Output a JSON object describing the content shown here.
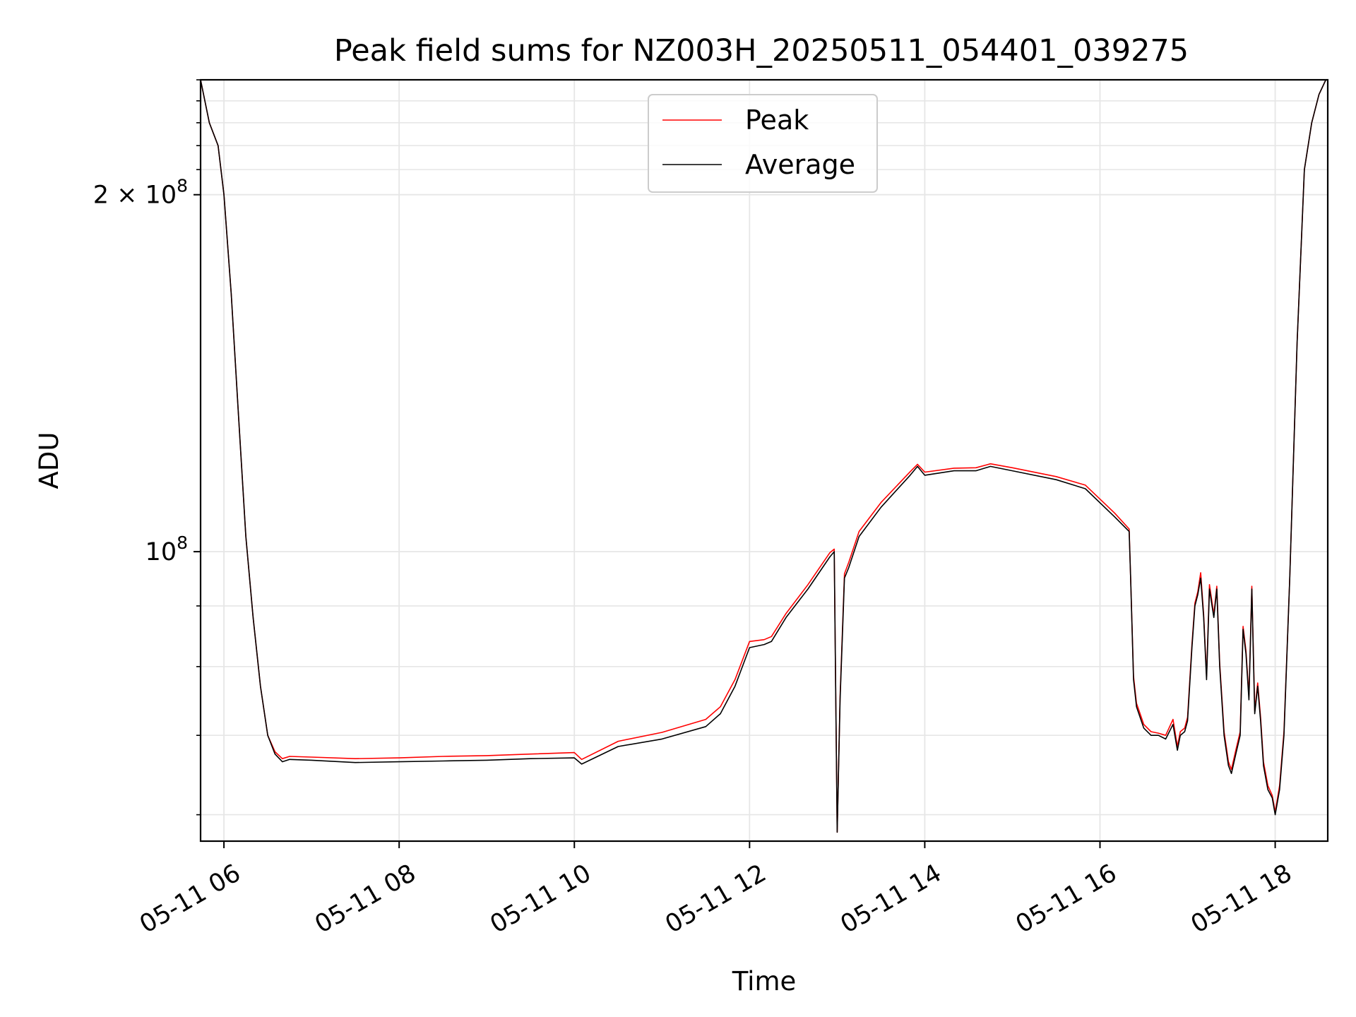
{
  "chart_data": {
    "type": "line",
    "title": "Peak field sums for NZ003H_20250511_054401_039275",
    "xlabel": "Time",
    "ylabel": "ADU",
    "y_scale": "log",
    "xlim": [
      "2025-05-11 05:44",
      "2025-05-11 18:36"
    ],
    "ylim": [
      57000000,
      250000000
    ],
    "x_ticks": [
      "05-11 06",
      "05-11 08",
      "05-11 10",
      "05-11 12",
      "05-11 14",
      "05-11 16",
      "05-11 18"
    ],
    "y_ticks": [
      {
        "value": 100000000,
        "base": "10",
        "exp": "8",
        "mult": ""
      },
      {
        "value": 200000000,
        "base": "10",
        "exp": "8",
        "mult": "2 × "
      }
    ],
    "grid": true,
    "legend_position": "top-center",
    "series": [
      {
        "name": "Average",
        "color": "#000000",
        "x": [
          "2025-05-11 05:44",
          "2025-05-11 05:50",
          "2025-05-11 05:56",
          "2025-05-11 06:00",
          "2025-05-11 06:05",
          "2025-05-11 06:10",
          "2025-05-11 06:15",
          "2025-05-11 06:20",
          "2025-05-11 06:25",
          "2025-05-11 06:30",
          "2025-05-11 06:35",
          "2025-05-11 06:40",
          "2025-05-11 06:45",
          "2025-05-11 07:00",
          "2025-05-11 07:30",
          "2025-05-11 08:00",
          "2025-05-11 08:30",
          "2025-05-11 09:00",
          "2025-05-11 09:30",
          "2025-05-11 10:00",
          "2025-05-11 10:05",
          "2025-05-11 10:30",
          "2025-05-11 11:00",
          "2025-05-11 11:30",
          "2025-05-11 11:40",
          "2025-05-11 11:50",
          "2025-05-11 12:00",
          "2025-05-11 12:10",
          "2025-05-11 12:15",
          "2025-05-11 12:25",
          "2025-05-11 12:40",
          "2025-05-11 12:55",
          "2025-05-11 12:58",
          "2025-05-11 13:00",
          "2025-05-11 13:02",
          "2025-05-11 13:05",
          "2025-05-11 13:08",
          "2025-05-11 13:15",
          "2025-05-11 13:30",
          "2025-05-11 13:50",
          "2025-05-11 13:55",
          "2025-05-11 14:00",
          "2025-05-11 14:20",
          "2025-05-11 14:35",
          "2025-05-11 14:45",
          "2025-05-11 15:00",
          "2025-05-11 15:30",
          "2025-05-11 15:50",
          "2025-05-11 16:10",
          "2025-05-11 16:20",
          "2025-05-11 16:21",
          "2025-05-11 16:23",
          "2025-05-11 16:25",
          "2025-05-11 16:30",
          "2025-05-11 16:35",
          "2025-05-11 16:40",
          "2025-05-11 16:45",
          "2025-05-11 16:50",
          "2025-05-11 16:53",
          "2025-05-11 16:55",
          "2025-05-11 16:58",
          "2025-05-11 17:00",
          "2025-05-11 17:03",
          "2025-05-11 17:05",
          "2025-05-11 17:07",
          "2025-05-11 17:09",
          "2025-05-11 17:11",
          "2025-05-11 17:13",
          "2025-05-11 17:15",
          "2025-05-11 17:18",
          "2025-05-11 17:20",
          "2025-05-11 17:22",
          "2025-05-11 17:25",
          "2025-05-11 17:28",
          "2025-05-11 17:30",
          "2025-05-11 17:33",
          "2025-05-11 17:36",
          "2025-05-11 17:38",
          "2025-05-11 17:40",
          "2025-05-11 17:42",
          "2025-05-11 17:44",
          "2025-05-11 17:46",
          "2025-05-11 17:48",
          "2025-05-11 17:50",
          "2025-05-11 17:52",
          "2025-05-11 17:55",
          "2025-05-11 17:58",
          "2025-05-11 18:00",
          "2025-05-11 18:03",
          "2025-05-11 18:06",
          "2025-05-11 18:10",
          "2025-05-11 18:15",
          "2025-05-11 18:20",
          "2025-05-11 18:25",
          "2025-05-11 18:30",
          "2025-05-11 18:36"
        ],
        "values": [
          250000000,
          230000000,
          220000000,
          200000000,
          165000000,
          130000000,
          103000000,
          88000000,
          77000000,
          70000000,
          67500000,
          66500000,
          66800000,
          66700000,
          66400000,
          66500000,
          66600000,
          66700000,
          66900000,
          67000000,
          66200000,
          68500000,
          69500000,
          71200000,
          73000000,
          77000000,
          83000000,
          83500000,
          84000000,
          88000000,
          93000000,
          99000000,
          100000000,
          58000000,
          75000000,
          95000000,
          97000000,
          103000000,
          109000000,
          116000000,
          118000000,
          116000000,
          117000000,
          117000000,
          118000000,
          117000000,
          115000000,
          113000000,
          107000000,
          104000000,
          95000000,
          78000000,
          74000000,
          71000000,
          70000000,
          70000000,
          69500000,
          71500000,
          68000000,
          70000000,
          70500000,
          72000000,
          83000000,
          90000000,
          92000000,
          95000000,
          88000000,
          78000000,
          93000000,
          88000000,
          93000000,
          80000000,
          70000000,
          66000000,
          65000000,
          67500000,
          70000000,
          86000000,
          82000000,
          75000000,
          93000000,
          73000000,
          77000000,
          72000000,
          66000000,
          63000000,
          62000000,
          60000000,
          63000000,
          70000000,
          95000000,
          150000000,
          210000000,
          230000000,
          243000000,
          252000000
        ]
      },
      {
        "name": "Peak",
        "color": "#ff0000",
        "x": [
          "2025-05-11 05:44",
          "2025-05-11 05:50",
          "2025-05-11 05:56",
          "2025-05-11 06:00",
          "2025-05-11 06:05",
          "2025-05-11 06:10",
          "2025-05-11 06:15",
          "2025-05-11 06:20",
          "2025-05-11 06:25",
          "2025-05-11 06:30",
          "2025-05-11 06:35",
          "2025-05-11 06:40",
          "2025-05-11 06:45",
          "2025-05-11 07:00",
          "2025-05-11 07:30",
          "2025-05-11 08:00",
          "2025-05-11 08:30",
          "2025-05-11 09:00",
          "2025-05-11 09:30",
          "2025-05-11 10:00",
          "2025-05-11 10:05",
          "2025-05-11 10:30",
          "2025-05-11 11:00",
          "2025-05-11 11:30",
          "2025-05-11 11:40",
          "2025-05-11 11:50",
          "2025-05-11 12:00",
          "2025-05-11 12:10",
          "2025-05-11 12:15",
          "2025-05-11 12:25",
          "2025-05-11 12:40",
          "2025-05-11 12:55",
          "2025-05-11 12:58",
          "2025-05-11 13:00",
          "2025-05-11 13:02",
          "2025-05-11 13:05",
          "2025-05-11 13:08",
          "2025-05-11 13:15",
          "2025-05-11 13:30",
          "2025-05-11 13:50",
          "2025-05-11 13:55",
          "2025-05-11 14:00",
          "2025-05-11 14:20",
          "2025-05-11 14:35",
          "2025-05-11 14:45",
          "2025-05-11 15:00",
          "2025-05-11 15:30",
          "2025-05-11 15:50",
          "2025-05-11 16:10",
          "2025-05-11 16:20",
          "2025-05-11 16:21",
          "2025-05-11 16:23",
          "2025-05-11 16:25",
          "2025-05-11 16:30",
          "2025-05-11 16:35",
          "2025-05-11 16:40",
          "2025-05-11 16:45",
          "2025-05-11 16:50",
          "2025-05-11 16:53",
          "2025-05-11 16:55",
          "2025-05-11 16:58",
          "2025-05-11 17:00",
          "2025-05-11 17:03",
          "2025-05-11 17:05",
          "2025-05-11 17:07",
          "2025-05-11 17:09",
          "2025-05-11 17:11",
          "2025-05-11 17:13",
          "2025-05-11 17:15",
          "2025-05-11 17:18",
          "2025-05-11 17:20",
          "2025-05-11 17:22",
          "2025-05-11 17:25",
          "2025-05-11 17:28",
          "2025-05-11 17:30",
          "2025-05-11 17:33",
          "2025-05-11 17:36",
          "2025-05-11 17:38",
          "2025-05-11 17:40",
          "2025-05-11 17:42",
          "2025-05-11 17:44",
          "2025-05-11 17:46",
          "2025-05-11 17:48",
          "2025-05-11 17:50",
          "2025-05-11 17:52",
          "2025-05-11 17:55",
          "2025-05-11 17:58",
          "2025-05-11 18:00",
          "2025-05-11 18:03",
          "2025-05-11 18:06",
          "2025-05-11 18:10",
          "2025-05-11 18:15",
          "2025-05-11 18:20",
          "2025-05-11 18:25",
          "2025-05-11 18:30",
          "2025-05-11 18:36"
        ],
        "values": [
          250000000,
          230000000,
          220000000,
          200000000,
          165000000,
          130000000,
          103000000,
          88000000,
          77000000,
          70000000,
          67800000,
          66900000,
          67200000,
          67100000,
          66900000,
          67000000,
          67200000,
          67300000,
          67500000,
          67700000,
          66800000,
          69200000,
          70400000,
          72200000,
          74000000,
          78000000,
          84000000,
          84300000,
          84800000,
          88700000,
          93800000,
          99800000,
          100500000,
          58000000,
          75500000,
          95800000,
          98000000,
          104000000,
          110000000,
          116800000,
          118500000,
          116700000,
          117600000,
          117700000,
          118600000,
          117700000,
          115700000,
          113800000,
          107800000,
          104500000,
          95000000,
          78500000,
          74500000,
          71500000,
          70500000,
          70300000,
          70000000,
          72200000,
          68500000,
          70500000,
          71000000,
          72500000,
          83500000,
          90500000,
          92500000,
          96000000,
          88500000,
          78500000,
          93800000,
          88500000,
          93500000,
          80500000,
          70500000,
          66500000,
          65500000,
          68000000,
          70500000,
          86500000,
          82500000,
          75500000,
          93500000,
          73500000,
          77500000,
          72500000,
          66500000,
          63500000,
          62300000,
          60300000,
          63500000,
          70500000,
          95000000,
          150000000,
          210000000,
          230000000,
          243000000,
          252000000
        ]
      }
    ]
  }
}
